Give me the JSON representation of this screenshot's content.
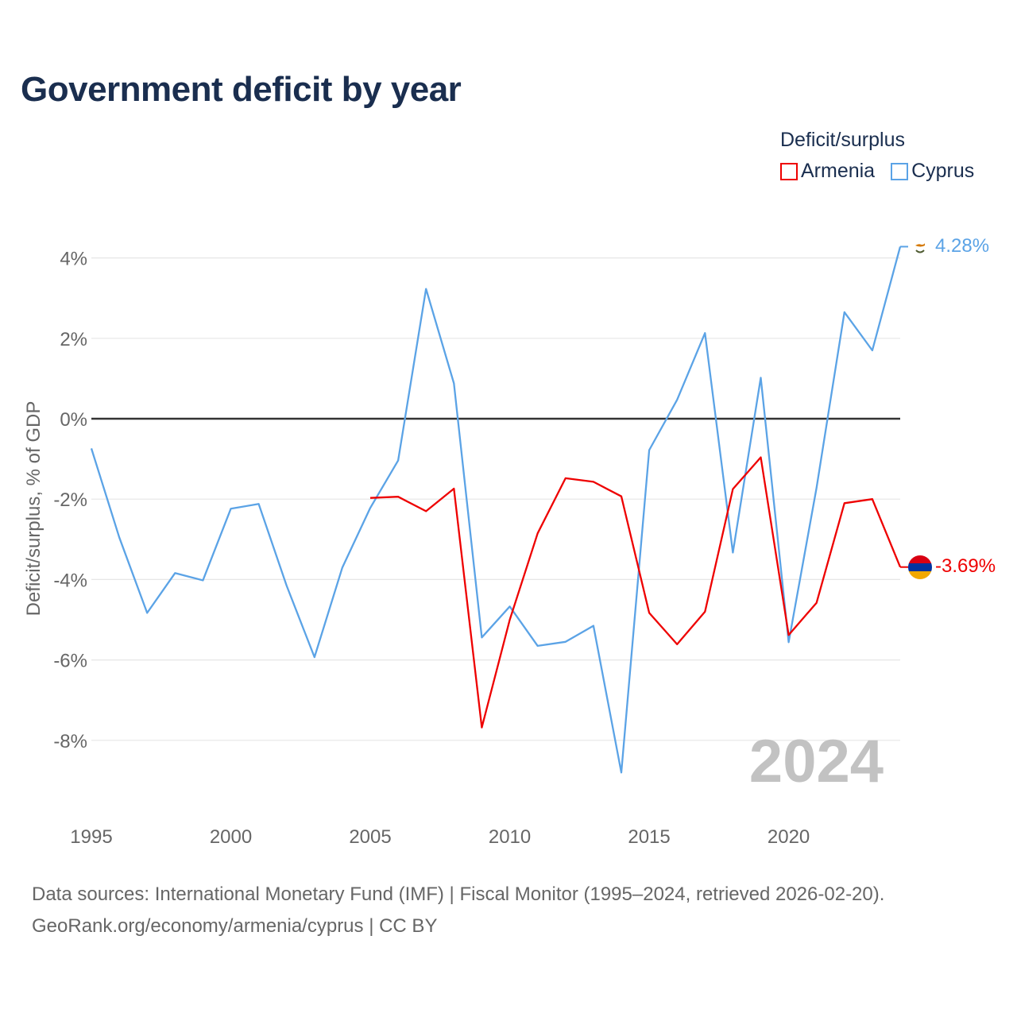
{
  "title": "Government deficit by year",
  "legend": {
    "title": "Deficit/surplus",
    "items": [
      {
        "label": "Armenia",
        "color": "#ee0000"
      },
      {
        "label": "Cyprus",
        "color": "#5ba3e6"
      }
    ]
  },
  "footer": {
    "line1": "Data sources: International Monetary Fund (IMF) | Fiscal Monitor (1995–2024, retrieved 2026-02-20).",
    "line2": "GeoRank.org/economy/armenia/cyprus | CC BY"
  },
  "chart_data": {
    "type": "line",
    "title": "Government deficit by year",
    "ylabel": "Deficit/surplus, % of GDP",
    "xlabel": "",
    "year_watermark": "2024",
    "xlim": [
      1995,
      2024
    ],
    "ylim": [
      -9.6,
      4.6
    ],
    "x_ticks": [
      1995,
      2000,
      2005,
      2010,
      2015,
      2020
    ],
    "y_ticks": [
      4,
      2,
      0,
      -2,
      -4,
      -6,
      -8
    ],
    "y_tick_labels": [
      "4%",
      "2%",
      "0%",
      "-2%",
      "-4%",
      "-6%",
      "-8%"
    ],
    "grid": true,
    "legend_position": "top-right",
    "series": [
      {
        "name": "Armenia",
        "color": "#ee0000",
        "end_label": "-3.69%",
        "x": [
          2005,
          2006,
          2007,
          2008,
          2009,
          2010,
          2011,
          2012,
          2013,
          2014,
          2015,
          2016,
          2017,
          2018,
          2019,
          2020,
          2021,
          2022,
          2023,
          2024
        ],
        "values": [
          -1.97,
          -1.94,
          -2.3,
          -1.74,
          -7.68,
          -5.0,
          -2.85,
          -1.48,
          -1.57,
          -1.93,
          -4.83,
          -5.61,
          -4.8,
          -1.75,
          -0.96,
          -5.38,
          -4.58,
          -2.1,
          -2.0,
          -3.69
        ]
      },
      {
        "name": "Cyprus",
        "color": "#5ba3e6",
        "end_label": "4.28%",
        "x": [
          1995,
          1996,
          1997,
          1998,
          1999,
          2000,
          2001,
          2002,
          2003,
          2004,
          2005,
          2006,
          2007,
          2008,
          2009,
          2010,
          2011,
          2012,
          2013,
          2014,
          2015,
          2016,
          2017,
          2018,
          2019,
          2020,
          2021,
          2022,
          2023,
          2024
        ],
        "values": [
          -0.74,
          -2.95,
          -4.83,
          -3.84,
          -4.02,
          -2.24,
          -2.12,
          -4.15,
          -5.93,
          -3.7,
          -2.22,
          -1.04,
          3.23,
          0.88,
          -5.44,
          -4.67,
          -5.65,
          -5.55,
          -5.15,
          -8.8,
          -0.78,
          0.47,
          2.13,
          -3.33,
          1.02,
          -5.56,
          -1.72,
          2.65,
          1.7,
          4.28
        ]
      }
    ]
  }
}
